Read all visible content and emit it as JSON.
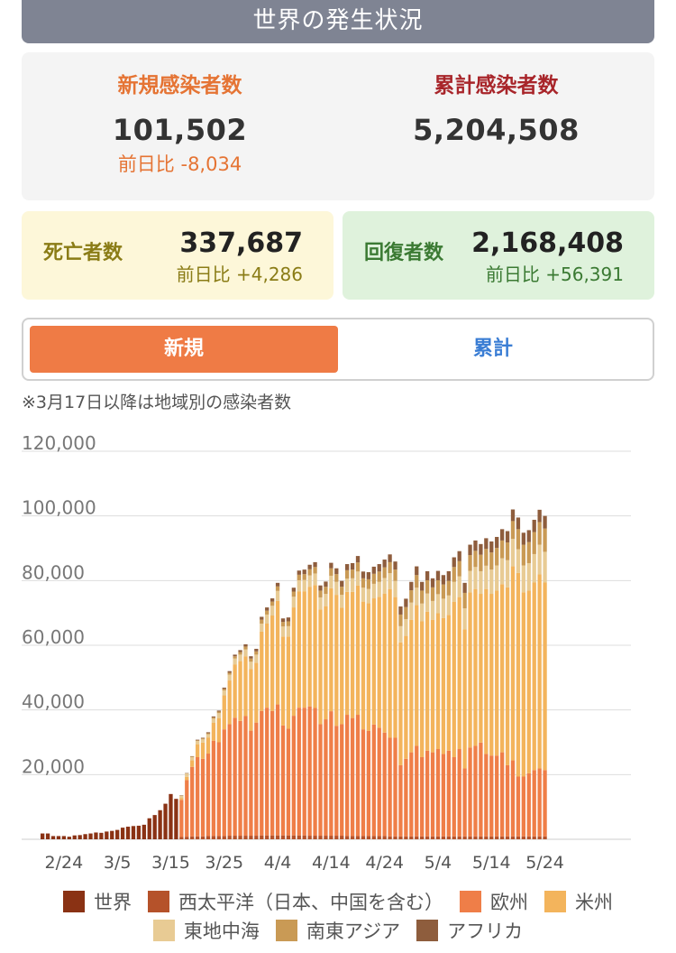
{
  "header": {
    "title": "世界の発生状況"
  },
  "summary": {
    "new_label": "新規感染者数",
    "new_value": "101,502",
    "new_diff": "前日比 -8,034",
    "total_label": "累計感染者数",
    "total_value": "5,204,508"
  },
  "deaths": {
    "label": "死亡者数",
    "value": "337,687",
    "diff": "前日比 +4,286"
  },
  "recovered": {
    "label": "回復者数",
    "value": "2,168,408",
    "diff": "前日比 +56,391"
  },
  "toggle": {
    "new_label": "新規",
    "total_label": "累計"
  },
  "note": "※3月17日以降は地域別の感染者数",
  "chart_data": {
    "type": "bar",
    "stacked": true,
    "title": "",
    "xlabel": "",
    "ylabel": "",
    "ylim": [
      0,
      120000
    ],
    "yticks": [
      "20,000",
      "40,000",
      "60,000",
      "80,000",
      "100,000",
      "120,000"
    ],
    "ytick_values": [
      20000,
      40000,
      60000,
      80000,
      100000,
      120000
    ],
    "x_tick_labels": [
      "2/24",
      "3/5",
      "3/15",
      "3/25",
      "4/4",
      "4/14",
      "4/24",
      "5/4",
      "5/14",
      "5/24"
    ],
    "grid": true,
    "legend_position": "bottom",
    "world_series": {
      "name": "世界",
      "dates": [
        "2/20",
        "2/21",
        "2/22",
        "2/23",
        "2/24",
        "2/25",
        "2/26",
        "2/27",
        "2/28",
        "2/29",
        "3/1",
        "3/2",
        "3/3",
        "3/4",
        "3/5",
        "3/6",
        "3/7",
        "3/8",
        "3/9",
        "3/10",
        "3/11",
        "3/12",
        "3/13",
        "3/14",
        "3/15",
        "3/16"
      ],
      "values": [
        1800,
        1800,
        1000,
        1000,
        1000,
        800,
        1200,
        1300,
        1600,
        1800,
        2100,
        2000,
        2400,
        2600,
        2900,
        3600,
        3900,
        4100,
        4200,
        4500,
        6500,
        7500,
        9000,
        11000,
        14000,
        12500
      ]
    },
    "regional_dates": [
      "3/17",
      "3/18",
      "3/19",
      "3/20",
      "3/21",
      "3/22",
      "3/23",
      "3/24",
      "3/25",
      "3/26",
      "3/27",
      "3/28",
      "3/29",
      "3/30",
      "3/31",
      "4/1",
      "4/2",
      "4/3",
      "4/4",
      "4/5",
      "4/6",
      "4/7",
      "4/8",
      "4/9",
      "4/10",
      "4/11",
      "4/12",
      "4/13",
      "4/14",
      "4/15",
      "4/16",
      "4/17",
      "4/18",
      "4/19",
      "4/20",
      "4/21",
      "4/22",
      "4/23",
      "4/24",
      "4/25",
      "4/26",
      "4/27",
      "4/28",
      "4/29",
      "4/30",
      "5/1",
      "5/2",
      "5/3",
      "5/4",
      "5/5",
      "5/6",
      "5/7",
      "5/8",
      "5/9",
      "5/10",
      "5/11",
      "5/12",
      "5/13",
      "5/14",
      "5/15",
      "5/16",
      "5/17",
      "5/18",
      "5/19",
      "5/20",
      "5/21",
      "5/22",
      "5/23",
      "5/24"
    ],
    "series": [
      {
        "name": "西太平洋（日本、中国を含む）",
        "color": "#b5522a",
        "values": [
          700,
          800,
          900,
          900,
          900,
          1000,
          1000,
          1000,
          1000,
          1100,
          1100,
          1100,
          1100,
          1100,
          1100,
          1200,
          1200,
          1200,
          1200,
          1200,
          1200,
          1200,
          1200,
          1200,
          1100,
          1100,
          1100,
          1100,
          1100,
          1100,
          1100,
          1000,
          1000,
          1000,
          1000,
          1000,
          1000,
          1000,
          1000,
          900,
          900,
          900,
          900,
          900,
          900,
          900,
          900,
          900,
          900,
          900,
          900,
          900,
          900,
          900,
          900,
          900,
          900,
          900,
          900,
          900,
          900,
          900,
          900,
          900,
          900,
          900,
          900,
          900,
          900
        ]
      },
      {
        "name": "欧州",
        "color": "#ef7e48",
        "values": [
          11500,
          17500,
          21500,
          24500,
          24000,
          25500,
          29500,
          29000,
          33000,
          34500,
          36500,
          35500,
          37000,
          32500,
          35000,
          38500,
          39500,
          38500,
          40500,
          34000,
          33000,
          37000,
          39500,
          39500,
          40000,
          39500,
          34500,
          36000,
          38500,
          34000,
          34500,
          37500,
          36500,
          37500,
          33000,
          32500,
          34500,
          33500,
          32000,
          30500,
          30500,
          22000,
          24000,
          26000,
          28000,
          24500,
          26500,
          26000,
          27000,
          25500,
          26500,
          24500,
          27000,
          21000,
          27500,
          28000,
          29000,
          25500,
          25000,
          25000,
          26000,
          22000,
          23500,
          18500,
          18500,
          19500,
          20500,
          21000,
          20500
        ]
      },
      {
        "name": "米州",
        "color": "#f3b45c",
        "values": [
          500,
          1000,
          2000,
          4000,
          5000,
          5000,
          5500,
          7500,
          10500,
          13500,
          16500,
          18500,
          18500,
          19000,
          18500,
          24500,
          26000,
          29500,
          32000,
          27500,
          28500,
          33500,
          36000,
          36000,
          37000,
          38000,
          35500,
          35000,
          38000,
          40500,
          36000,
          38000,
          39000,
          40000,
          39500,
          39500,
          39000,
          40500,
          43000,
          46000,
          43500,
          38000,
          38000,
          41000,
          43500,
          42000,
          43000,
          41000,
          42000,
          42000,
          42000,
          48000,
          47000,
          43000,
          48000,
          48500,
          46000,
          51000,
          50000,
          51000,
          52000,
          55000,
          60000,
          63000,
          57000,
          56500,
          58000,
          60000,
          58000
        ]
      },
      {
        "name": "東地中海",
        "color": "#e8cb94",
        "values": [
          700,
          1000,
          1000,
          1000,
          1000,
          1000,
          1300,
          1500,
          1500,
          1800,
          1800,
          2000,
          2100,
          2300,
          2500,
          2500,
          2800,
          3000,
          3100,
          3100,
          3200,
          3300,
          3400,
          3500,
          3500,
          3600,
          3700,
          3800,
          3900,
          4000,
          4000,
          4100,
          4200,
          4300,
          4300,
          4400,
          4500,
          4600,
          4800,
          4900,
          5000,
          5000,
          5200,
          5300,
          5400,
          5500,
          5600,
          5800,
          5900,
          6000,
          6000,
          6200,
          6400,
          6500,
          6600,
          6800,
          7000,
          7200,
          7500,
          7800,
          8000,
          8400,
          8500,
          7300,
          8300,
          8500,
          8800,
          9200,
          9500
        ]
      },
      {
        "name": "南東アジア",
        "color": "#c99a55",
        "values": [
          100,
          100,
          200,
          200,
          300,
          300,
          400,
          500,
          500,
          600,
          700,
          800,
          900,
          1000,
          1000,
          1200,
          1200,
          1300,
          1400,
          1400,
          1500,
          1600,
          1700,
          1800,
          1900,
          2000,
          2100,
          2200,
          2300,
          2400,
          2500,
          2600,
          2700,
          2800,
          2900,
          3000,
          3100,
          3200,
          3300,
          3400,
          3500,
          3600,
          3700,
          3800,
          3900,
          4000,
          4100,
          4200,
          4300,
          4400,
          4500,
          4600,
          4700,
          4800,
          4900,
          5000,
          5100,
          5200,
          5300,
          5400,
          5500,
          5500,
          5500,
          6200,
          6400,
          6500,
          6800,
          7000,
          7200
        ]
      },
      {
        "name": "アフリカ",
        "color": "#8e5d3d",
        "values": [
          100,
          100,
          100,
          200,
          200,
          300,
          300,
          300,
          400,
          500,
          500,
          600,
          700,
          700,
          800,
          900,
          1000,
          1000,
          1100,
          1100,
          1200,
          1200,
          1300,
          1400,
          1400,
          1500,
          1600,
          1600,
          1700,
          1800,
          1800,
          1900,
          2000,
          2000,
          2100,
          2200,
          2200,
          2300,
          2400,
          2400,
          2500,
          2500,
          2600,
          2600,
          2700,
          2700,
          2800,
          2800,
          2900,
          2900,
          3000,
          3000,
          3100,
          3100,
          3200,
          3200,
          3300,
          3300,
          3400,
          3400,
          3500,
          3500,
          3600,
          3600,
          3700,
          3700,
          3800,
          3800,
          3900
        ]
      }
    ]
  },
  "legend": {
    "world_color": "#8a3214",
    "items_row1": [
      {
        "label": "世界",
        "color": "#8a3214"
      },
      {
        "label": "西太平洋（日本、中国を含む）",
        "color": "#b5522a"
      },
      {
        "label": "欧州",
        "color": "#ef7e48"
      },
      {
        "label": "米州",
        "color": "#f3b45c"
      }
    ],
    "items_row2": [
      {
        "label": "東地中海",
        "color": "#e8cb94"
      },
      {
        "label": "南東アジア",
        "color": "#c99a55"
      },
      {
        "label": "アフリカ",
        "color": "#8e5d3d"
      }
    ]
  }
}
